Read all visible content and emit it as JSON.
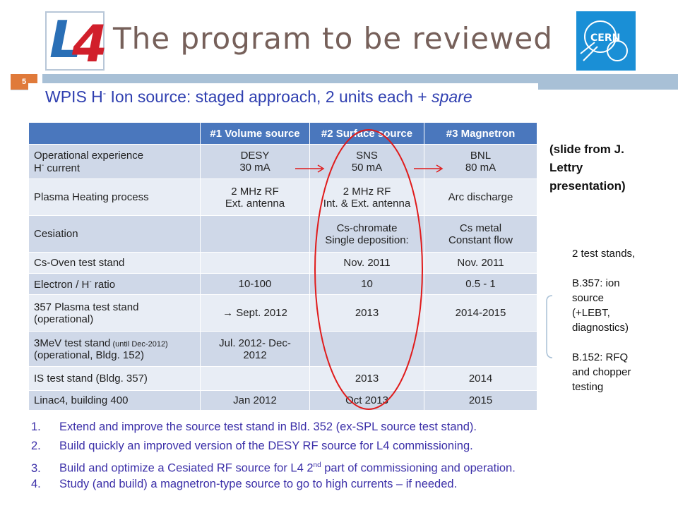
{
  "header": {
    "title": "The program to be reviewed",
    "slide_number": "5",
    "logo_left_text": "L4",
    "logo_right_text": "CERN"
  },
  "subtitle": {
    "part1": "WPIS H",
    "sup": "-",
    "part2": " Ion source: staged approach, 2 units each + ",
    "part3": "spare"
  },
  "table": {
    "headers": [
      "",
      "#1 Volume source",
      "#2 Surface source",
      "#3 Magnetron"
    ],
    "rows": [
      {
        "label1": "Operational experience",
        "label2": "H- current",
        "c1a": "DESY",
        "c1b": "30 mA",
        "c2a": "SNS",
        "c2b": "50 mA",
        "c3a": "BNL",
        "c3b": "80 mA"
      },
      {
        "label1": "Plasma Heating process",
        "c1a": "2 MHz RF",
        "c1b": "Ext. antenna",
        "c2a": "2 MHz RF",
        "c2b": "Int. & Ext. antenna",
        "c3a": "Arc discharge"
      },
      {
        "label1": "Cesiation",
        "c2a": "Cs-chromate",
        "c2b": "Single deposition:",
        "c3a": "Cs metal",
        "c3b": "Constant flow"
      },
      {
        "label1": "Cs-Oven test stand",
        "c2a": "Nov. 2011",
        "c3a": "Nov. 2011"
      },
      {
        "label1": "Electron / H- ratio",
        "c1a": "10-100",
        "c2a": "10",
        "c3a": "0.5 - 1"
      },
      {
        "label1": "357 Plasma test stand",
        "label2": "(operational)",
        "c1a": "→ Sept. 2012",
        "c2a": "2013",
        "c3a": "2014-2015"
      },
      {
        "label1": "3MeV test stand",
        "label1_small": " (until Dec-2012)",
        "label2": "(operational, Bldg. 152)",
        "c1a": "Jul. 2012- Dec-",
        "c1b": "2012"
      },
      {
        "label1": "IS test stand  (Bldg. 357)",
        "c2a": "2013",
        "c3a": "2014"
      },
      {
        "label1": "Linac4, building 400",
        "c1a": "Jan 2012",
        "c2a": "Oct 2013",
        "c3a": "2015"
      }
    ]
  },
  "notes": {
    "source_line1": "(slide from J.",
    "source_line2": "Lettry",
    "source_line3": "presentation)",
    "stands": [
      "2 test stands,",
      "",
      "B.357: ion",
      "source",
      "(+LEBT,",
      "diagnostics)",
      "",
      "B.152: RFQ",
      "and chopper",
      "testing"
    ]
  },
  "steps": [
    {
      "num": "1.",
      "text": "Extend and improve the source test stand in Bld. 352 (ex-SPL source test stand)."
    },
    {
      "num": "2.",
      "text": "Build quickly an improved version of the DESY RF source for L4 commissioning."
    },
    {
      "num": "3.",
      "text_a": "Build and optimize a Cesiated RF source for L4 2",
      "sup": "nd",
      "text_b": " part of commissioning and operation."
    },
    {
      "num": "4.",
      "text": "Study (and build) a magnetron-type source to go to high currents – if needed."
    }
  ],
  "colors": {
    "title": "#76605a",
    "subtitle": "#2f3fb0",
    "table_header": "#4a77bd",
    "row_dark": "#cfd8e8",
    "row_light": "#e8edf5",
    "accent_red": "#d11f2b",
    "steps_text": "#3b2fa8"
  }
}
